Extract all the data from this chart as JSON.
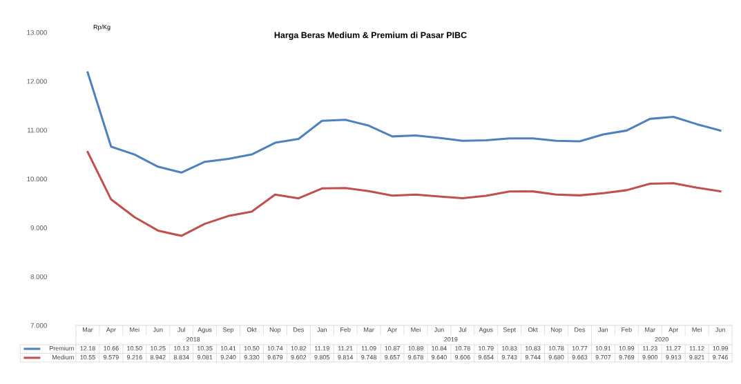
{
  "chart_data": {
    "type": "line",
    "title": "Harga Beras Medium & Premium di Pasar PIBC",
    "ylabel": "Rp/Kg",
    "categories": [
      "Mar",
      "Apr",
      "Mei",
      "Jun",
      "Jul",
      "Agus",
      "Sep",
      "Okt",
      "Nop",
      "Des",
      "Jan",
      "Feb",
      "Mar",
      "Apr",
      "Mei",
      "Jun",
      "Jul",
      "Agus",
      "Sept",
      "Okt",
      "Nop",
      "Des",
      "Jan",
      "Feb",
      "Mar",
      "Apr",
      "Mei",
      "Jun"
    ],
    "annotations": [
      "2018",
      "2019",
      "2020"
    ],
    "series": [
      {
        "name": "Premium",
        "color": "#4f81bd",
        "values": [
          12.18,
          10.66,
          10.5,
          10.25,
          10.13,
          10.35,
          10.41,
          10.5,
          10.74,
          10.82,
          11.19,
          11.21,
          11.09,
          10.87,
          10.89,
          10.84,
          10.78,
          10.79,
          10.83,
          10.83,
          10.78,
          10.77,
          10.91,
          10.99,
          11.23,
          11.27,
          11.12,
          10.99
        ],
        "value_labels": [
          "12.18",
          "10.66",
          "10.50",
          "10.25",
          "10.13",
          "10.35",
          "10.41",
          "10.50",
          "10.74",
          "10.82",
          "11.19",
          "11.21",
          "11.09",
          "10.87",
          "10.89",
          "10.84",
          "10.78",
          "10.79",
          "10.83",
          "10.83",
          "10.78",
          "10.77",
          "10.91",
          "10.99",
          "11.23",
          "11.27",
          "11.12",
          "10.99"
        ]
      },
      {
        "name": "Medium",
        "color": "#c0504d",
        "values": [
          10.55,
          9.579,
          9.216,
          8.942,
          8.834,
          9.081,
          9.24,
          9.33,
          9.679,
          9.602,
          9.805,
          9.814,
          9.748,
          9.657,
          9.678,
          9.64,
          9.606,
          9.654,
          9.743,
          9.744,
          9.68,
          9.663,
          9.707,
          9.769,
          9.9,
          9.913,
          9.821,
          9.746
        ],
        "value_labels": [
          "10.55",
          "9.579",
          "9.216",
          "8.942",
          "8.834",
          "9.081",
          "9.240",
          "9.330",
          "9.679",
          "9.602",
          "9.805",
          "9.814",
          "9.748",
          "9.657",
          "9.678",
          "9.640",
          "9.606",
          "9.654",
          "9.743",
          "9.744",
          "9.680",
          "9.663",
          "9.707",
          "9.769",
          "9.900",
          "9.913",
          "9.821",
          "9.746"
        ]
      }
    ],
    "ylim": [
      7,
      13
    ],
    "yticks": [
      {
        "value": 7,
        "label": "7.000"
      },
      {
        "value": 8,
        "label": "8.000"
      },
      {
        "value": 9,
        "label": "9.000"
      },
      {
        "value": 10,
        "label": "10.000"
      },
      {
        "value": 11,
        "label": "11.000"
      },
      {
        "value": 12,
        "label": "12.000"
      },
      {
        "value": 13,
        "label": "13.000"
      }
    ],
    "grid": false,
    "legend": "bottom left",
    "marker": "none",
    "line_style": "solid"
  }
}
